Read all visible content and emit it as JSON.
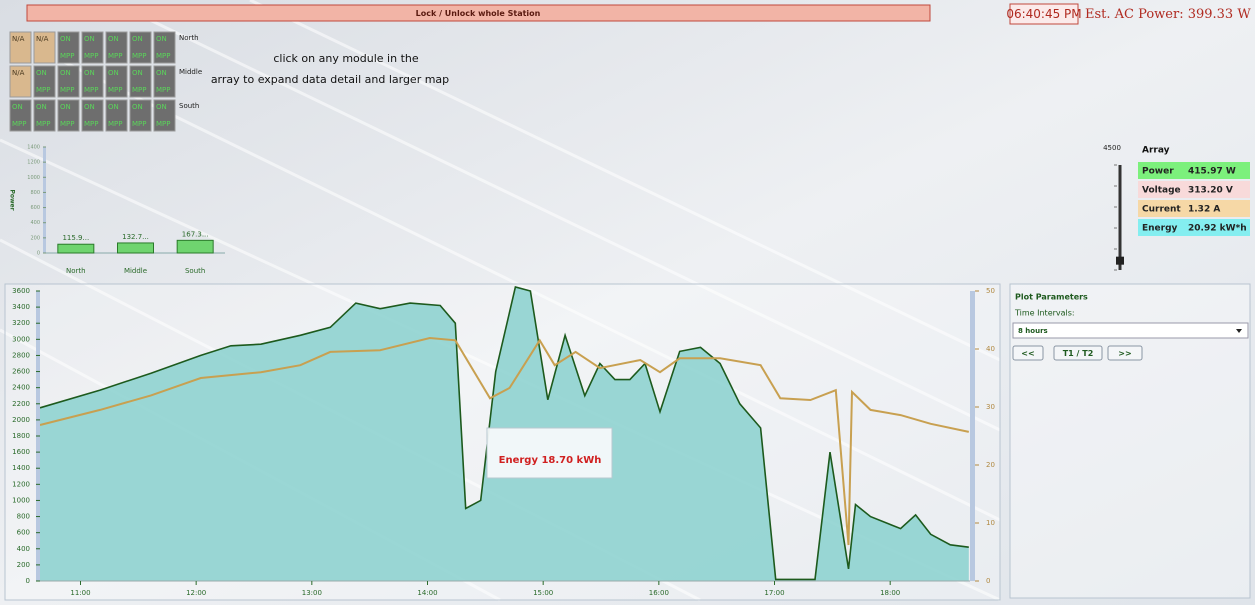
{
  "header": {
    "button": "Lock / Unlock whole Station",
    "time": "06:40:45 PM",
    "ac_power": "Est. AC Power: 399.33 W"
  },
  "instructions": [
    "click on any module in the",
    "array to expand data detail and larger map"
  ],
  "modules": [
    {
      "label": "North",
      "cells": [
        {
          "status": "N/A"
        },
        {
          "status": "N/A"
        },
        {
          "status": "ON",
          "mode": "MPP"
        },
        {
          "status": "ON",
          "mode": "MPP"
        },
        {
          "status": "ON",
          "mode": "MPP"
        },
        {
          "status": "ON",
          "mode": "MPP"
        },
        {
          "status": "ON",
          "mode": "MPP"
        }
      ]
    },
    {
      "label": "Middle",
      "cells": [
        {
          "status": "N/A"
        },
        {
          "status": "ON",
          "mode": "MPP"
        },
        {
          "status": "ON",
          "mode": "MPP"
        },
        {
          "status": "ON",
          "mode": "MPP"
        },
        {
          "status": "ON",
          "mode": "MPP"
        },
        {
          "status": "ON",
          "mode": "MPP"
        },
        {
          "status": "ON",
          "mode": "MPP"
        }
      ]
    },
    {
      "label": "South",
      "cells": [
        {
          "status": "ON",
          "mode": "MPP"
        },
        {
          "status": "ON",
          "mode": "MPP"
        },
        {
          "status": "ON",
          "mode": "MPP"
        },
        {
          "status": "ON",
          "mode": "MPP"
        },
        {
          "status": "ON",
          "mode": "MPP"
        },
        {
          "status": "ON",
          "mode": "MPP"
        },
        {
          "status": "ON",
          "mode": "MPP"
        }
      ]
    }
  ],
  "array_panel": {
    "title": "Array",
    "gauge_max": 4500,
    "gauge_value": 400,
    "rows": [
      {
        "label": "Power",
        "value": "415.97 W",
        "color": "#7cf07c"
      },
      {
        "label": "Voltage",
        "value": "313.20 V",
        "color": "#f8dada"
      },
      {
        "label": "Current",
        "value": "1.32 A",
        "color": "#f6d8a6"
      },
      {
        "label": "Energy",
        "value": "20.92 kW*h",
        "color": "#84eef0"
      }
    ]
  },
  "plot_parameters": {
    "title": "Plot Parameters",
    "intervals_label": "Time Intervals:",
    "selected": "8 hours",
    "buttons": [
      "<<",
      "T1 / T2",
      ">>"
    ]
  },
  "chart_data": [
    {
      "type": "bar",
      "ylabel": "Power",
      "categories": [
        "North",
        "Middle",
        "South"
      ],
      "values": [
        115.9,
        132.7,
        167.3
      ],
      "value_labels": [
        "115.9...",
        "132.7...",
        "167.3..."
      ],
      "color": "#6fd46f",
      "ylim": [
        0,
        1400
      ],
      "yticks": [
        0,
        200,
        400,
        600,
        800,
        1000,
        1200,
        1400
      ]
    },
    {
      "type": "area",
      "annotation": "Energy 18.70 kWh",
      "xlim": [
        10.65,
        18.69
      ],
      "xticks": [
        {
          "value": 11,
          "label": "11:00"
        },
        {
          "value": 12,
          "label": "12:00"
        },
        {
          "value": 13,
          "label": "13:00"
        },
        {
          "value": 14,
          "label": "14:00"
        },
        {
          "value": 15,
          "label": "15:00"
        },
        {
          "value": 16,
          "label": "16:00"
        },
        {
          "value": 17,
          "label": "17:00"
        },
        {
          "value": 18,
          "label": "18:00"
        }
      ],
      "ylim": [
        0,
        3600
      ],
      "yticks": [
        0,
        200,
        400,
        600,
        800,
        1000,
        1200,
        1400,
        1600,
        1800,
        2000,
        2200,
        2400,
        2600,
        2800,
        3000,
        3200,
        3400,
        3600
      ],
      "y2lim": [
        0,
        50
      ],
      "y2ticks": [
        0,
        10,
        20,
        30,
        40,
        50
      ],
      "series": [
        {
          "color": "#1d5a1d",
          "fill": "#8fd3d0",
          "x": [
            10.65,
            11.17,
            11.61,
            12.04,
            12.3,
            12.56,
            12.9,
            13.16,
            13.38,
            13.59,
            13.85,
            14.11,
            14.24,
            14.33,
            14.46,
            14.59,
            14.76,
            14.89,
            15.04,
            15.19,
            15.36,
            15.49,
            15.62,
            15.75,
            15.88,
            16.01,
            16.18,
            16.36,
            16.53,
            16.7,
            16.88,
            17.01,
            17.22,
            17.35,
            17.48,
            17.64,
            17.7,
            17.83,
            18.09,
            18.22,
            18.35,
            18.52,
            18.68
          ],
          "values": [
            2150,
            2370,
            2580,
            2800,
            2920,
            2940,
            3050,
            3150,
            3450,
            3380,
            3450,
            3420,
            3200,
            900,
            1000,
            2600,
            3650,
            3600,
            2250,
            3050,
            2300,
            2700,
            2500,
            2500,
            2700,
            2100,
            2850,
            2900,
            2700,
            2200,
            1900,
            20,
            20,
            20,
            1600,
            150,
            950,
            800,
            650,
            820,
            580,
            450,
            420
          ]
        },
        {
          "color": "#c8a050",
          "axis": "y2",
          "x": [
            10.65,
            11.17,
            11.61,
            12.04,
            12.56,
            12.9,
            13.16,
            13.59,
            14.02,
            14.24,
            14.54,
            14.71,
            14.97,
            15.1,
            15.28,
            15.49,
            15.84,
            16.01,
            16.18,
            16.53,
            16.88,
            17.05,
            17.31,
            17.53,
            17.64,
            17.67,
            17.83,
            18.09,
            18.35,
            18.68
          ],
          "values": [
            26.9,
            29.5,
            32,
            35,
            36,
            37.2,
            39.5,
            39.8,
            41.9,
            41.5,
            31.5,
            33.3,
            41.5,
            37.2,
            39.5,
            36.7,
            38.1,
            36,
            38.4,
            38.4,
            37.2,
            31.5,
            31.2,
            32.9,
            6.2,
            32.6,
            29.5,
            28.6,
            27.1,
            25.7
          ]
        }
      ]
    }
  ]
}
